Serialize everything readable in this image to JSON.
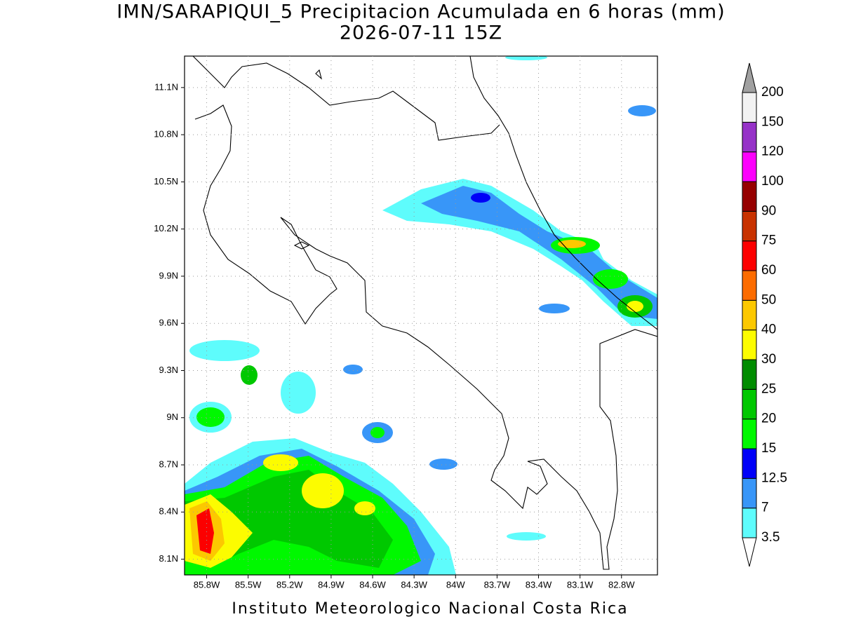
{
  "title": "IMN/SARAPIQUI_5 Precipitacion Acumulada en 6 horas (mm)",
  "subtitle": "2026-07-11 15Z",
  "footer": "Instituto Meteorologico Nacional Costa Rica",
  "map": {
    "xlim": [
      -85.96,
      -82.54
    ],
    "ylim": [
      8.0,
      11.3
    ],
    "xticks": [
      {
        "value": -85.8,
        "label": "85.8W"
      },
      {
        "value": -85.5,
        "label": "85.5W"
      },
      {
        "value": -85.2,
        "label": "85.2W"
      },
      {
        "value": -84.9,
        "label": "84.9W"
      },
      {
        "value": -84.6,
        "label": "84.6W"
      },
      {
        "value": -84.3,
        "label": "84.3W"
      },
      {
        "value": -84.0,
        "label": "84W"
      },
      {
        "value": -83.7,
        "label": "83.7W"
      },
      {
        "value": -83.4,
        "label": "83.4W"
      },
      {
        "value": -83.1,
        "label": "83.1W"
      },
      {
        "value": -82.8,
        "label": "82.8W"
      }
    ],
    "yticks": [
      {
        "value": 8.1,
        "label": "8.1N"
      },
      {
        "value": 8.4,
        "label": "8.4N"
      },
      {
        "value": 8.7,
        "label": "8.7N"
      },
      {
        "value": 9.0,
        "label": "9N"
      },
      {
        "value": 9.3,
        "label": "9.3N"
      },
      {
        "value": 9.6,
        "label": "9.6N"
      },
      {
        "value": 9.9,
        "label": "9.9N"
      },
      {
        "value": 10.2,
        "label": "10.2N"
      },
      {
        "value": 10.5,
        "label": "10.5N"
      },
      {
        "value": 10.8,
        "label": "10.8N"
      },
      {
        "value": 11.1,
        "label": "11.1N"
      }
    ],
    "grid": true
  },
  "colorbar": {
    "levels": [
      3.5,
      7,
      12.5,
      15,
      20,
      25,
      30,
      40,
      50,
      60,
      75,
      90,
      100,
      120,
      150,
      200
    ],
    "colors": [
      "#ffffff",
      "#5efcfc",
      "#3896f8",
      "#0000f8",
      "#00f800",
      "#00c800",
      "#008c00",
      "#fcfc00",
      "#fcc800",
      "#fc6c00",
      "#fc0000",
      "#c83200",
      "#960000",
      "#fc00fc",
      "#9632c8",
      "#f2f2f2",
      "#a0a0a0"
    ]
  }
}
